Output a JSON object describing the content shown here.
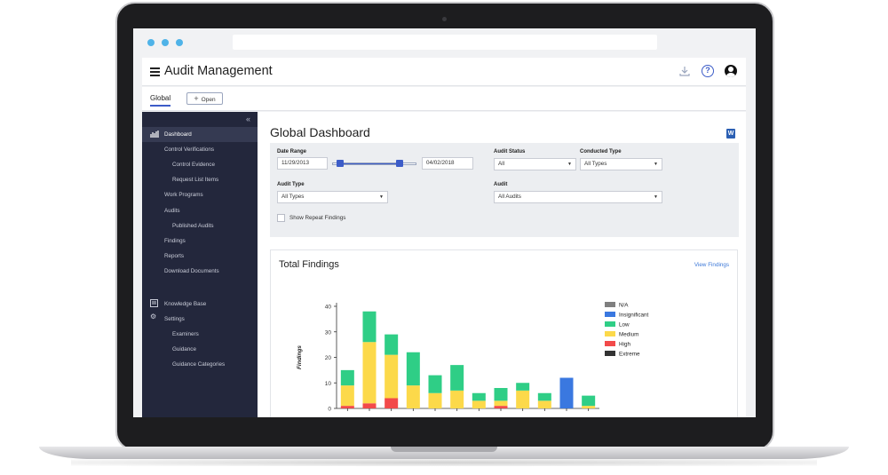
{
  "app": {
    "title": "Audit Management"
  },
  "header_icons": [
    "download-icon",
    "help-icon",
    "user-icon"
  ],
  "tabs": {
    "global": "Global",
    "open_button": "Open"
  },
  "sidebar": {
    "items": [
      {
        "label": "Dashboard",
        "icon": "dashboard-icon",
        "active": true
      },
      {
        "label": "Control Verifications"
      },
      {
        "label": "Control Evidence"
      },
      {
        "label": "Request List Items"
      },
      {
        "label": "Work Programs"
      },
      {
        "label": "Audits"
      },
      {
        "label": "Published Audits"
      },
      {
        "label": "Findings"
      },
      {
        "label": "Reports"
      },
      {
        "label": "Download Documents"
      },
      {
        "label": "Knowledge Base",
        "icon": "book-icon"
      },
      {
        "label": "Settings",
        "icon": "gear-icon"
      },
      {
        "label": "Examiners"
      },
      {
        "label": "Guidance"
      },
      {
        "label": "Guidance Categories"
      }
    ]
  },
  "main": {
    "title": "Global Dashboard",
    "filters": {
      "date_range_label": "Date Range",
      "date_from": "11/29/2013",
      "date_to": "04/02/2018",
      "audit_status_label": "Audit Status",
      "audit_status_value": "All",
      "conducted_type_label": "Conducted Type",
      "conducted_type_value": "All Types",
      "audit_type_label": "Audit Type",
      "audit_type_value": "All Types",
      "audit_label": "Audit",
      "audit_value": "All Audits",
      "repeat_findings_label": "Show Repeat Findings"
    },
    "findings": {
      "title": "Total Findings",
      "view_link": "View Findings"
    }
  },
  "chart_data": {
    "type": "bar",
    "stacked": true,
    "ylabel": "Findings",
    "ylim": [
      0,
      40
    ],
    "yticks": [
      0,
      10,
      20,
      30,
      40
    ],
    "grid": false,
    "legend_position": "right",
    "categories": [
      "",
      "",
      "",
      "",
      "",
      "",
      "",
      "",
      "",
      "",
      "",
      ""
    ],
    "series": [
      {
        "name": "N/A",
        "color": "#7f7f7f",
        "values": [
          0,
          0,
          0,
          0,
          0,
          0,
          0,
          0,
          0,
          0,
          0,
          0
        ]
      },
      {
        "name": "Insignificant",
        "color": "#3a78e0",
        "values": [
          0,
          0,
          0,
          0,
          0,
          0,
          0,
          0,
          0,
          0,
          12,
          0
        ]
      },
      {
        "name": "Low",
        "color": "#2fce86",
        "values": [
          6,
          12,
          8,
          13,
          7,
          10,
          3,
          5,
          3,
          3,
          0,
          4
        ]
      },
      {
        "name": "Medium",
        "color": "#fcd94a",
        "values": [
          8,
          24,
          17,
          9,
          6,
          7,
          3,
          2,
          7,
          3,
          0,
          1
        ]
      },
      {
        "name": "High",
        "color": "#f24a4a",
        "values": [
          1,
          2,
          4,
          0,
          0,
          0,
          0,
          1,
          0,
          0,
          0,
          0
        ]
      },
      {
        "name": "Extreme",
        "color": "#333333",
        "values": [
          0,
          0,
          0,
          0,
          0,
          0,
          0,
          0,
          0,
          0,
          0,
          0
        ]
      }
    ]
  }
}
